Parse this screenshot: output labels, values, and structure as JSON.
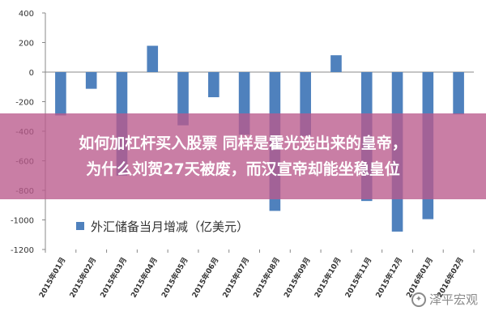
{
  "chart_data": {
    "type": "bar",
    "categories": [
      "2015年01月",
      "2015年02月",
      "2015年03月",
      "2015年04月",
      "2015年05月",
      "2015年06月",
      "2015年07月",
      "2015年08月",
      "2015年09月",
      "2015年10月",
      "2015年11月",
      "2015年12月",
      "2016年01月",
      "2016年02月"
    ],
    "series": [
      {
        "name": "外汇储备当月增减（亿美元）",
        "values": [
          -293,
          -113,
          -700,
          178,
          -360,
          -170,
          -424,
          -939,
          -432,
          114,
          -872,
          -1079,
          -995,
          -286
        ]
      }
    ],
    "ylim": [
      -1200,
      400
    ],
    "yticks": [
      -1200,
      -1000,
      -800,
      -600,
      -400,
      -200,
      0,
      200,
      400
    ],
    "grid": false,
    "legend": "lower-left",
    "bar_color": "#4F81BD"
  },
  "overlay": {
    "caption": "如何加杠杆买入股票 同样是霍光选出来的皇帝，\n为什么刘贺27天被废，而汉宣帝却能坐稳皇位"
  },
  "watermark": {
    "text": "泽平宏观"
  }
}
